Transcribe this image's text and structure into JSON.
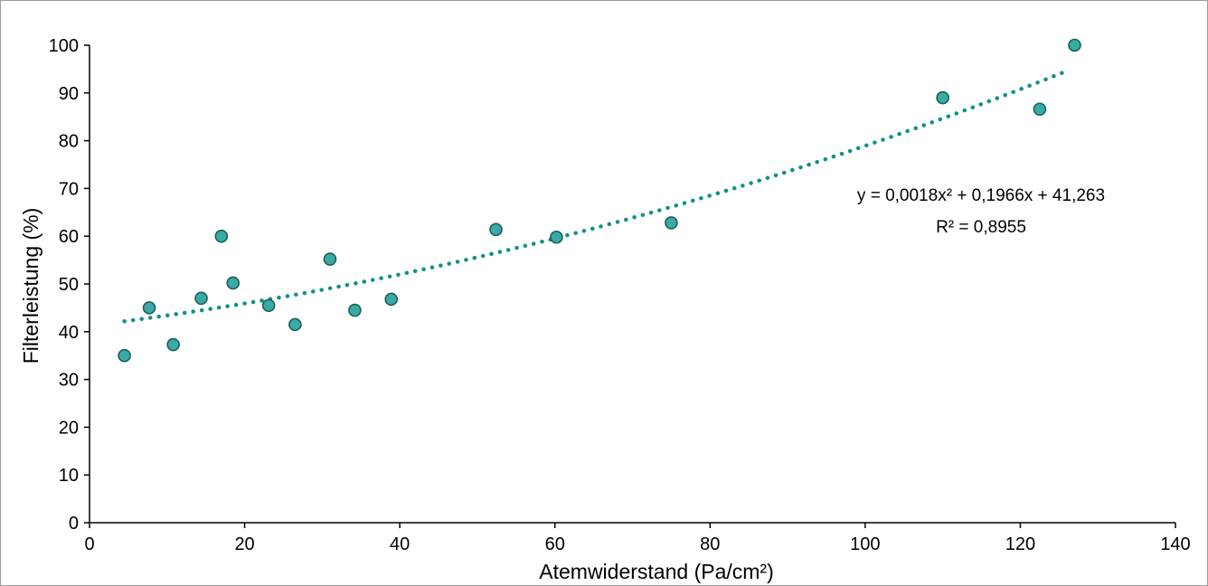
{
  "chart_data": {
    "type": "scatter",
    "title": "",
    "xlabel": "Atemwiderstand (Pa/cm²)",
    "ylabel": "Filterleistung (%)",
    "xlim": [
      0,
      140
    ],
    "ylim": [
      0,
      100
    ],
    "xticks": [
      0,
      20,
      40,
      60,
      80,
      100,
      120,
      140
    ],
    "yticks": [
      0,
      10,
      20,
      30,
      40,
      50,
      60,
      70,
      80,
      90,
      100
    ],
    "grid": false,
    "legend": "none",
    "series": [
      {
        "color": "#3aaaa4",
        "points": [
          {
            "x": 4.5,
            "y": 35
          },
          {
            "x": 7.7,
            "y": 45
          },
          {
            "x": 10.8,
            "y": 37.3
          },
          {
            "x": 14.4,
            "y": 47
          },
          {
            "x": 17,
            "y": 60
          },
          {
            "x": 18.5,
            "y": 50.2
          },
          {
            "x": 23.1,
            "y": 45.5
          },
          {
            "x": 26.5,
            "y": 41.5
          },
          {
            "x": 31,
            "y": 55.2
          },
          {
            "x": 34.2,
            "y": 44.5
          },
          {
            "x": 38.9,
            "y": 46.8
          },
          {
            "x": 52.4,
            "y": 61.4
          },
          {
            "x": 60.2,
            "y": 59.8
          },
          {
            "x": 75,
            "y": 62.8
          },
          {
            "x": 110,
            "y": 89
          },
          {
            "x": 122.5,
            "y": 86.6
          },
          {
            "x": 127,
            "y": 100
          }
        ]
      }
    ],
    "trendline": {
      "type": "polynomial",
      "color": "#13908a",
      "coefficients": [
        0.0018,
        0.1966,
        41.263
      ],
      "x_range": [
        4.5,
        126
      ],
      "equation": "y = 0,0018x² + 0,1966x + 41,263",
      "r_squared": "R² = 0,8955"
    }
  }
}
